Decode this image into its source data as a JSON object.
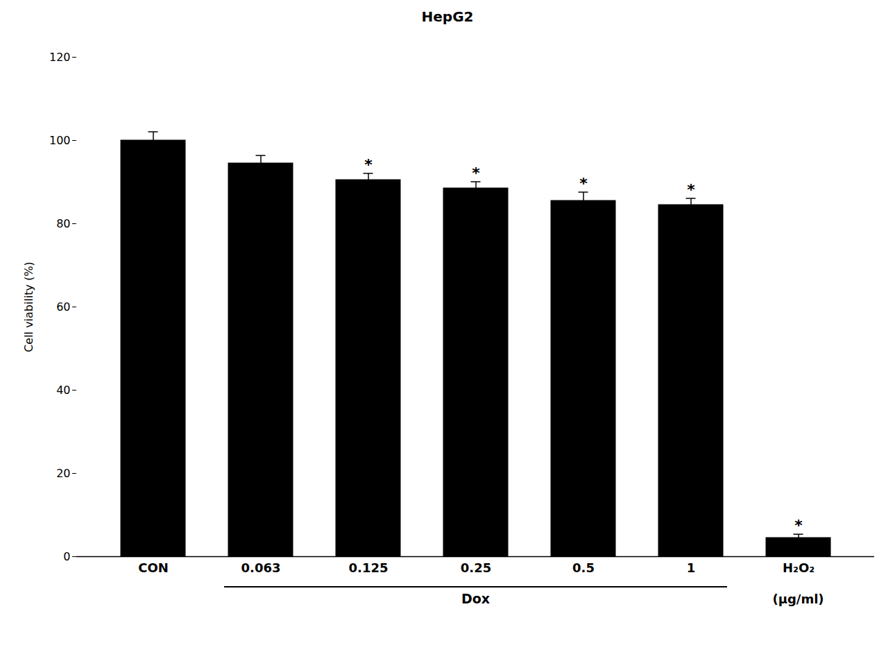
{
  "chart_data": {
    "type": "bar",
    "title": "HepG2",
    "categories": [
      "CON",
      "0.063",
      "0.125",
      "0.25",
      "0.5",
      "1",
      "H₂O₂"
    ],
    "values": [
      100.0,
      94.5,
      90.5,
      88.5,
      85.5,
      84.5,
      4.5
    ],
    "errors": [
      2.0,
      1.8,
      1.5,
      1.5,
      2.0,
      1.5,
      0.8
    ],
    "significant": [
      false,
      false,
      true,
      true,
      true,
      true,
      true
    ],
    "significance_label": "*",
    "color": "#000000",
    "ylabel": "Cell viability (%)",
    "annotations": [
      {
        "text": "Dox",
        "categories": [
          "0.063",
          "0.125",
          "0.25",
          "0.5",
          "1"
        ]
      },
      {
        "text": "(μg/ml)",
        "categories": [
          "H₂O₂"
        ]
      }
    ],
    "ylim": [
      0,
      120
    ],
    "yticks": [
      0,
      20,
      40,
      60,
      80,
      100,
      120
    ],
    "grid": false
  }
}
